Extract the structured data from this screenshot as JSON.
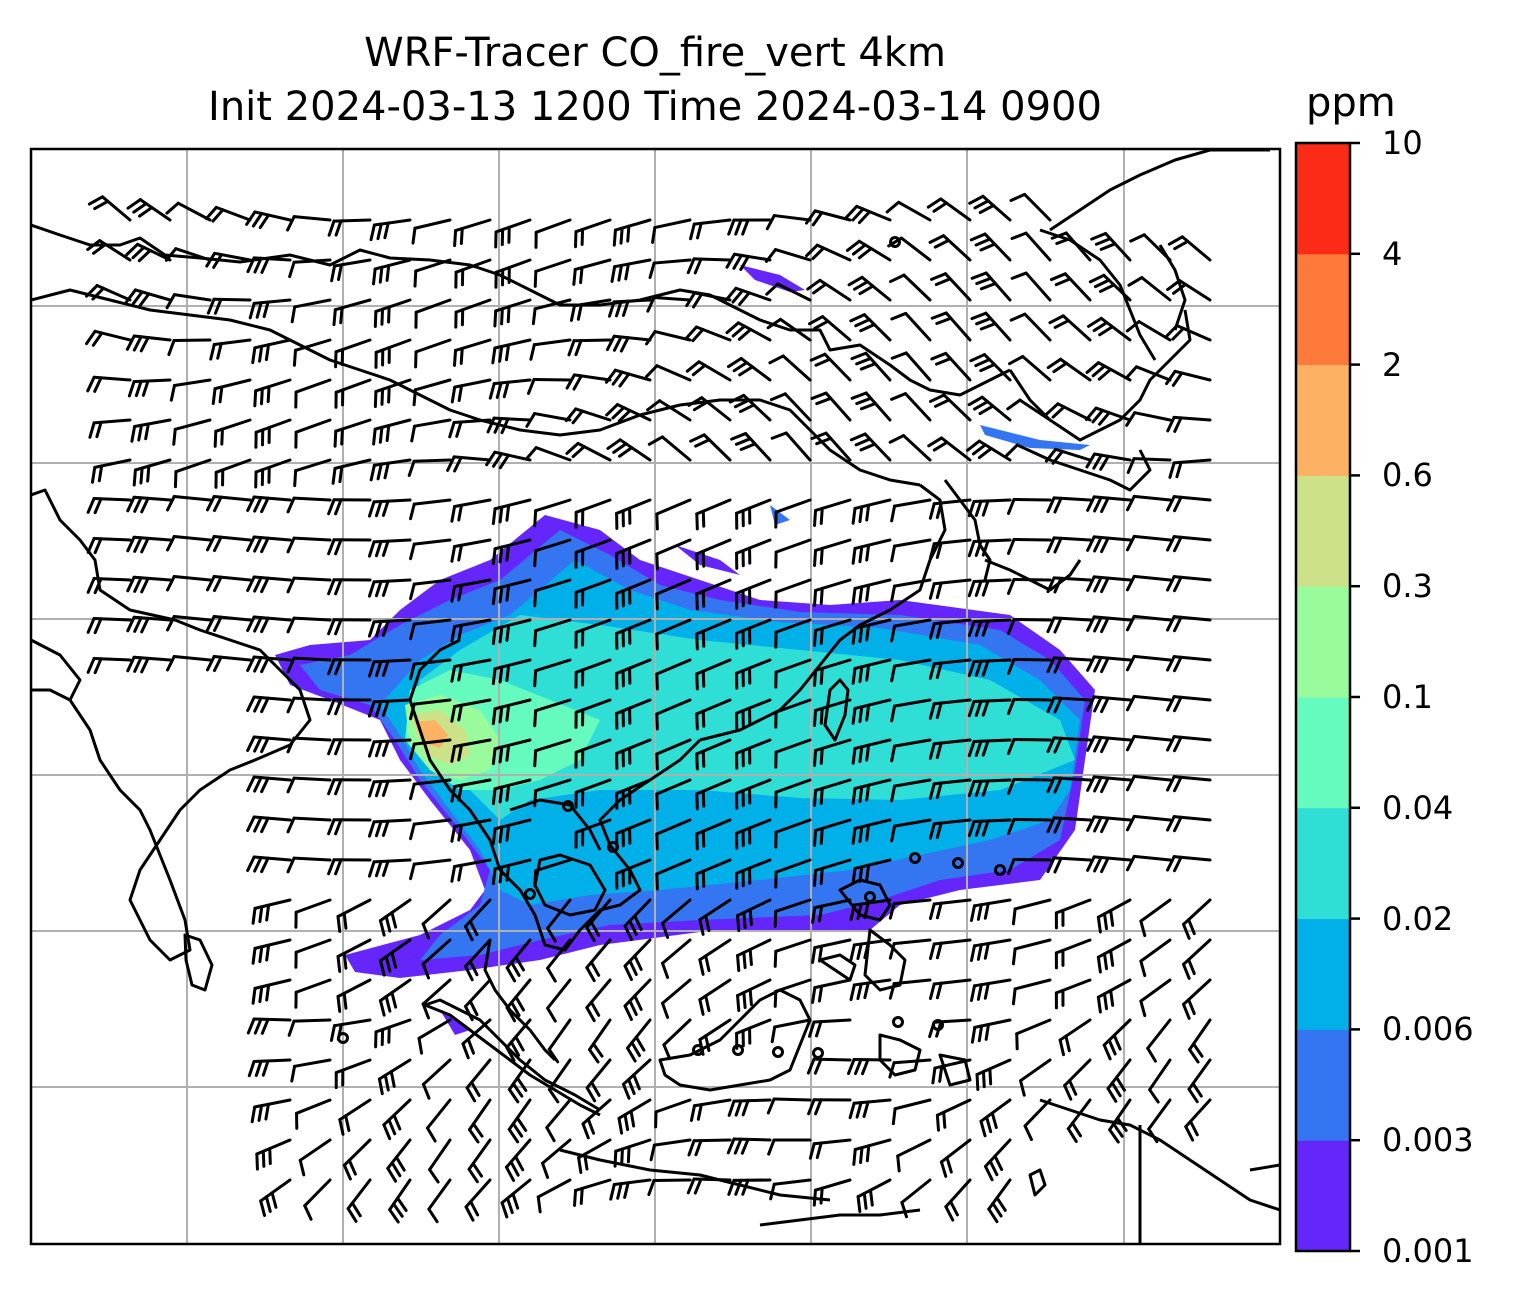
{
  "title": {
    "line1": "WRF-Tracer CO_fire_vert 4km",
    "line2": "Init 2024-03-13 1200 Time 2024-03-14 0900"
  },
  "colorbar": {
    "unit": "ppm",
    "levels": [
      "0.001",
      "0.003",
      "0.006",
      "0.02",
      "0.04",
      "0.1",
      "0.3",
      "0.6",
      "2",
      "4",
      "10"
    ],
    "colors": [
      "#6526fb",
      "#3476f2",
      "#02b0e9",
      "#2fdfd6",
      "#66fbbe",
      "#9afb9c",
      "#cde188",
      "#fdb163",
      "#fd7a3b",
      "#fb2b17"
    ]
  },
  "map": {
    "variable": "CO_fire_vert",
    "gridlines": true,
    "coastline_color": "#000000",
    "grid_color": "#b0b0b0"
  }
}
